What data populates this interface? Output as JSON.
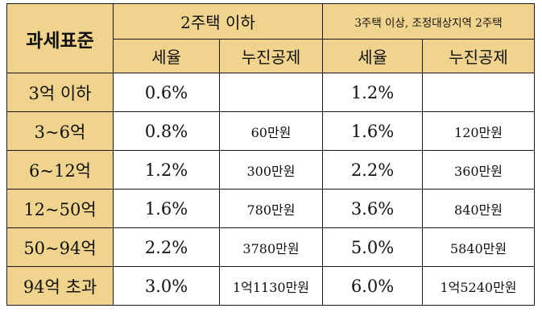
{
  "table": {
    "corner_label": "과세표준",
    "group_1_label": "2주택 이하",
    "group_2_label": "3주택 이상, 조정대상지역 2주택",
    "sub_headers": {
      "g1_rate": "세율",
      "g1_deduction": "누진공제",
      "g2_rate": "세율",
      "g2_deduction": "누진공제"
    },
    "rows": [
      {
        "bracket": "3억 이하",
        "g1_rate": "0.6%",
        "g1_deduction": "",
        "g2_rate": "1.2%",
        "g2_deduction": ""
      },
      {
        "bracket": "3~6억",
        "g1_rate": "0.8%",
        "g1_deduction": "60만원",
        "g2_rate": "1.6%",
        "g2_deduction": "120만원"
      },
      {
        "bracket": "6~12억",
        "g1_rate": "1.2%",
        "g1_deduction": "300만원",
        "g2_rate": "2.2%",
        "g2_deduction": "360만원"
      },
      {
        "bracket": "12~50억",
        "g1_rate": "1.6%",
        "g1_deduction": "780만원",
        "g2_rate": "3.6%",
        "g2_deduction": "840만원"
      },
      {
        "bracket": "50~94억",
        "g1_rate": "2.2%",
        "g1_deduction": "3780만원",
        "g2_rate": "5.0%",
        "g2_deduction": "5840만원"
      },
      {
        "bracket": "94억 초과",
        "g1_rate": "3.0%",
        "g1_deduction": "1억1130만원",
        "g2_rate": "6.0%",
        "g2_deduction": "1억5240만원"
      }
    ],
    "colors": {
      "header_fill": "#f0d48e",
      "border": "#1a1a1a",
      "cell_fill": "#ffffff"
    }
  }
}
